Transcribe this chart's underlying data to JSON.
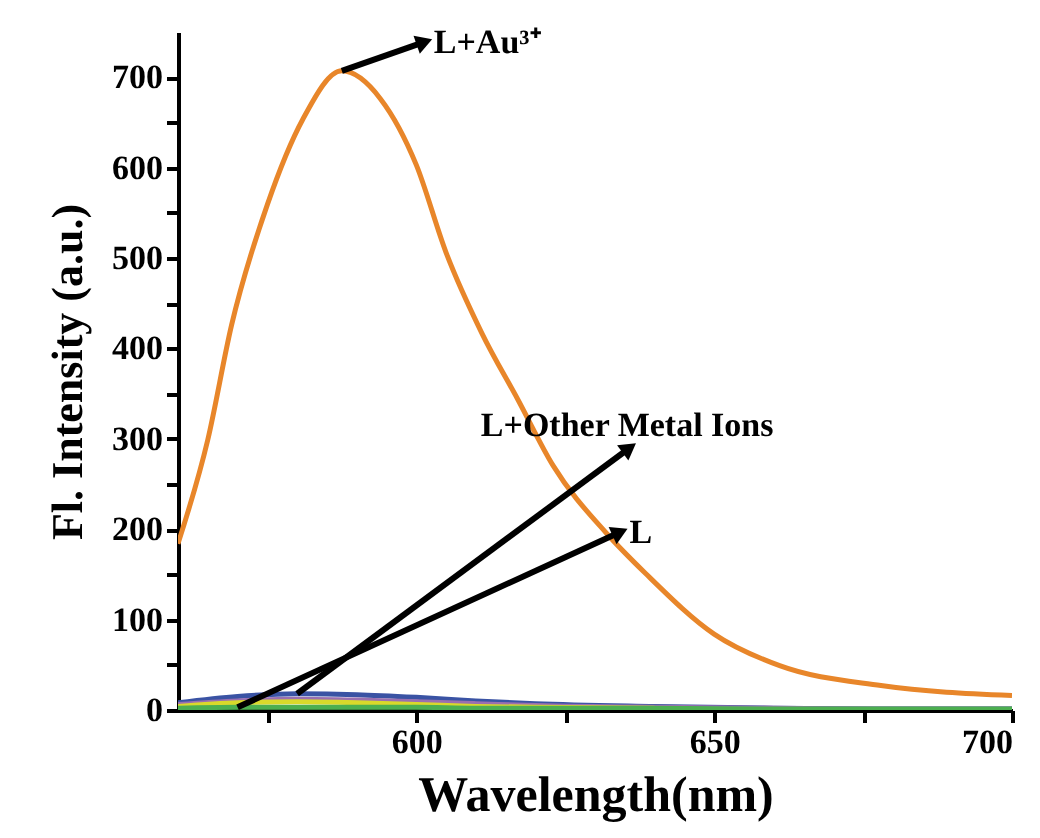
{
  "chart_data": {
    "type": "line",
    "xlabel": "Wavelength(nm)",
    "ylabel": "Fl. Intensity (a.u.)",
    "xlim": [
      560,
      700
    ],
    "ylim": [
      0,
      750
    ],
    "xticks": [
      {
        "value": 575,
        "label": null
      },
      600,
      {
        "value": 625,
        "label": null
      },
      650,
      {
        "value": 675,
        "label": null
      },
      700
    ],
    "yticks": [
      0,
      {
        "value": 50,
        "label": null
      },
      100,
      {
        "value": 150,
        "label": null
      },
      200,
      {
        "value": 250,
        "label": null
      },
      300,
      {
        "value": 350,
        "label": null
      },
      400,
      {
        "value": 450,
        "label": null
      },
      500,
      {
        "value": 550,
        "label": null
      },
      600,
      {
        "value": 650,
        "label": null
      },
      700
    ],
    "grid": false,
    "marker": "none",
    "line_style": "solid",
    "series": [
      {
        "color": "#e8862a",
        "x": [
          560,
          565,
          569,
          575,
          581,
          587.5,
          594,
          600,
          605,
          611,
          617,
          623,
          632,
          638.5,
          650,
          661,
          678,
          700
        ],
        "values": [
          184,
          299,
          426,
          559,
          654,
          707,
          676,
          603,
          506,
          417,
          344,
          270,
          195,
          151,
          84,
          49,
          27,
          16
        ]
      },
      {
        "color": "#3a53a4",
        "x": [
          560,
          570,
          580,
          590,
          600,
          610,
          620,
          640,
          660,
          680,
          700
        ],
        "values": [
          8,
          15,
          18,
          17,
          14,
          10,
          7,
          4,
          2,
          1,
          1
        ]
      },
      {
        "color": "#9a6fb0",
        "x": [
          560,
          570,
          580,
          590,
          600,
          610,
          620,
          640,
          660,
          680,
          700
        ],
        "values": [
          6,
          10,
          12,
          11,
          9,
          7,
          5,
          3,
          2,
          1,
          1
        ]
      },
      {
        "color": "#d9d92b",
        "x": [
          560,
          570,
          580,
          590,
          600,
          610,
          620,
          640
        ],
        "values": [
          4,
          8,
          9,
          8,
          6,
          4,
          3,
          2
        ]
      },
      {
        "color": "#4caf50",
        "x": [
          560,
          570,
          580,
          590,
          600,
          610,
          620,
          640,
          660,
          680,
          700
        ],
        "values": [
          2,
          3,
          3,
          3,
          3,
          2,
          2,
          2,
          1,
          1,
          1
        ]
      }
    ],
    "annotations": [
      "L+Au³⁺",
      "L+Other Metal Ions",
      "L"
    ]
  }
}
